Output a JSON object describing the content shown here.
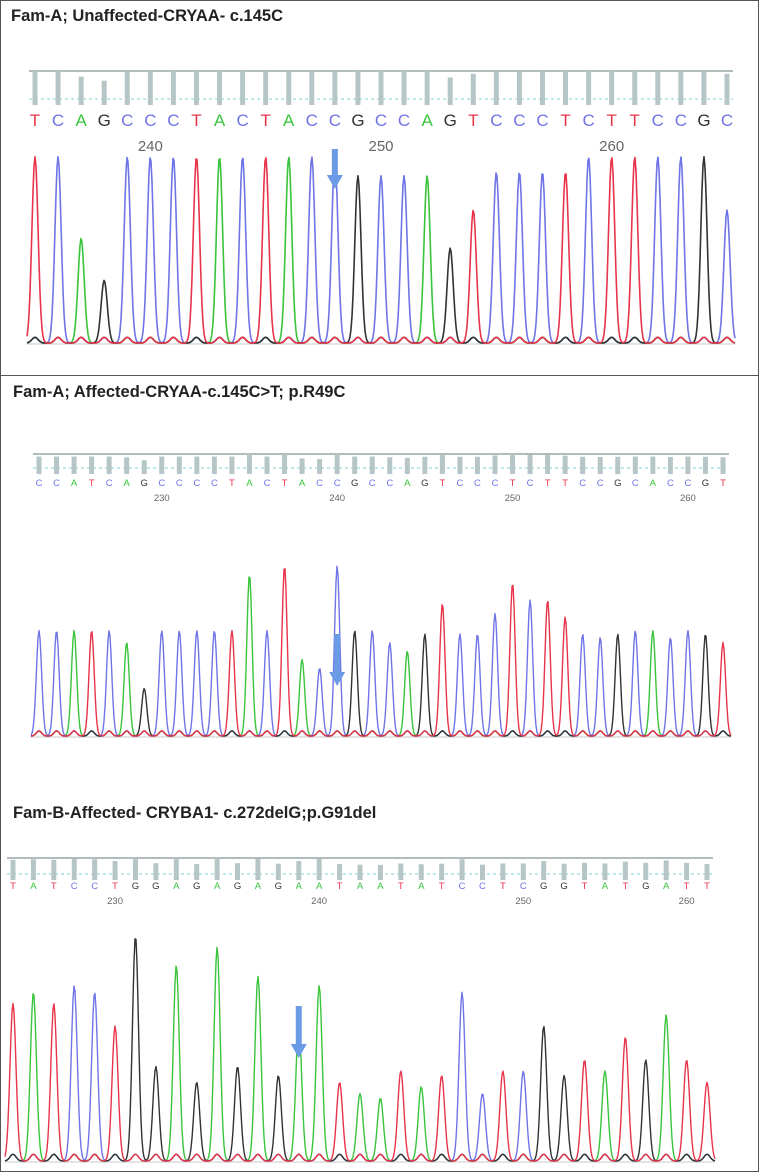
{
  "colors": {
    "A": "#39c43b",
    "C": "#6f74e6",
    "G": "#333333",
    "T": "#e8344a",
    "arrow": "#6c9be6",
    "ref": "#b6c6c6"
  },
  "chart_data": [
    {
      "type": "line",
      "title": "Fam-A; Unaffected-CRYAA- c.145C",
      "bases": "TCAGCCCTACTACCGCCAGTCCCTCTTCCGC",
      "tick_labels": [
        "240",
        "250",
        "260"
      ],
      "peak_heights": [
        0.98,
        0.98,
        0.55,
        0.33,
        0.98,
        0.98,
        0.98,
        0.98,
        0.98,
        0.98,
        0.98,
        0.98,
        0.98,
        0.98,
        0.88,
        0.88,
        0.88,
        0.88,
        0.5,
        0.7,
        0.9,
        0.9,
        0.9,
        0.9,
        0.98,
        0.98,
        0.98,
        0.98,
        0.98,
        0.98,
        0.7
      ],
      "mutation_index": 13
    },
    {
      "type": "line",
      "title": "Fam-A;  Affected-CRYAA-c.145C>T; p.R49C",
      "bases": "CCATCAGCCCCTACTACCGCCAGTCCCTCTTCCGCACCGT",
      "tick_labels": [
        "230",
        "240",
        "250",
        "260"
      ],
      "peak_heights": [
        0.62,
        0.62,
        0.62,
        0.62,
        0.62,
        0.55,
        0.28,
        0.62,
        0.62,
        0.62,
        0.62,
        0.62,
        0.95,
        0.62,
        1.0,
        0.45,
        0.4,
        1.0,
        0.62,
        0.62,
        0.55,
        0.5,
        0.6,
        0.78,
        0.6,
        0.6,
        0.72,
        0.9,
        0.8,
        0.8,
        0.7,
        0.6,
        0.58,
        0.6,
        0.62,
        0.62,
        0.58,
        0.62,
        0.6,
        0.55
      ],
      "mutation_index": 17
    },
    {
      "type": "line",
      "title": "Fam-B-Affected- CRYBA1- c.272delG;p.G91del",
      "bases": "TATCCTGGAGAGAGAATAATATCCTCGGTATGATT",
      "tick_labels": [
        "230",
        "240",
        "250",
        "260"
      ],
      "peak_heights": [
        0.7,
        0.75,
        0.7,
        0.78,
        0.75,
        0.6,
        1.0,
        0.42,
        0.87,
        0.35,
        0.95,
        0.42,
        0.82,
        0.38,
        0.6,
        0.78,
        0.35,
        0.3,
        0.28,
        0.4,
        0.33,
        0.38,
        0.75,
        0.3,
        0.4,
        0.4,
        0.6,
        0.38,
        0.45,
        0.4,
        0.55,
        0.45,
        0.65,
        0.45,
        0.35
      ],
      "mutation_index": 14
    }
  ]
}
